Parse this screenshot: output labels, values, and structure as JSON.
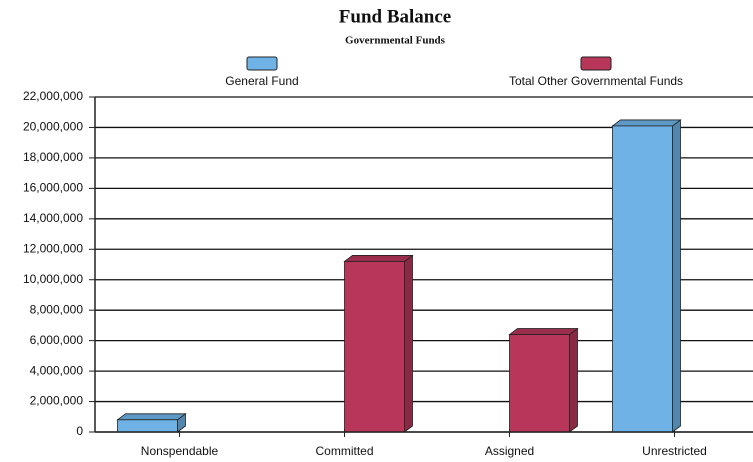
{
  "chart_data": {
    "type": "bar",
    "title": "Fund Balance",
    "subtitle": "Governmental Funds",
    "categories": [
      "Nonspendable",
      "Committed",
      "Assigned",
      "Unrestricted"
    ],
    "series": [
      {
        "name": "General Fund",
        "color": "#6fb3e6",
        "values": [
          800000,
          0,
          0,
          20100000
        ]
      },
      {
        "name": "Total Other Governmental Funds",
        "color": "#b8365a",
        "values": [
          0,
          11200000,
          6400000,
          0
        ]
      }
    ],
    "ylim": [
      0,
      22000000
    ],
    "yticks": [
      0,
      {
        "value": 2000000,
        "label": "2,000,000"
      },
      {
        "value": 4000000,
        "label": "4,000,000"
      },
      {
        "value": 6000000,
        "label": "6,000,000"
      },
      {
        "value": 8000000,
        "label": "8,000,000"
      },
      {
        "value": 10000000,
        "label": "10,000,000"
      },
      {
        "value": 12000000,
        "label": "12,000,000"
      },
      {
        "value": 14000000,
        "label": "14,000,000"
      },
      {
        "value": 16000000,
        "label": "16,000,000"
      },
      {
        "value": 18000000,
        "label": "18,000,000"
      },
      {
        "value": 20000000,
        "label": "20,000,000"
      },
      {
        "value": 22000000,
        "label": "22,000,000"
      }
    ],
    "grid": true
  }
}
